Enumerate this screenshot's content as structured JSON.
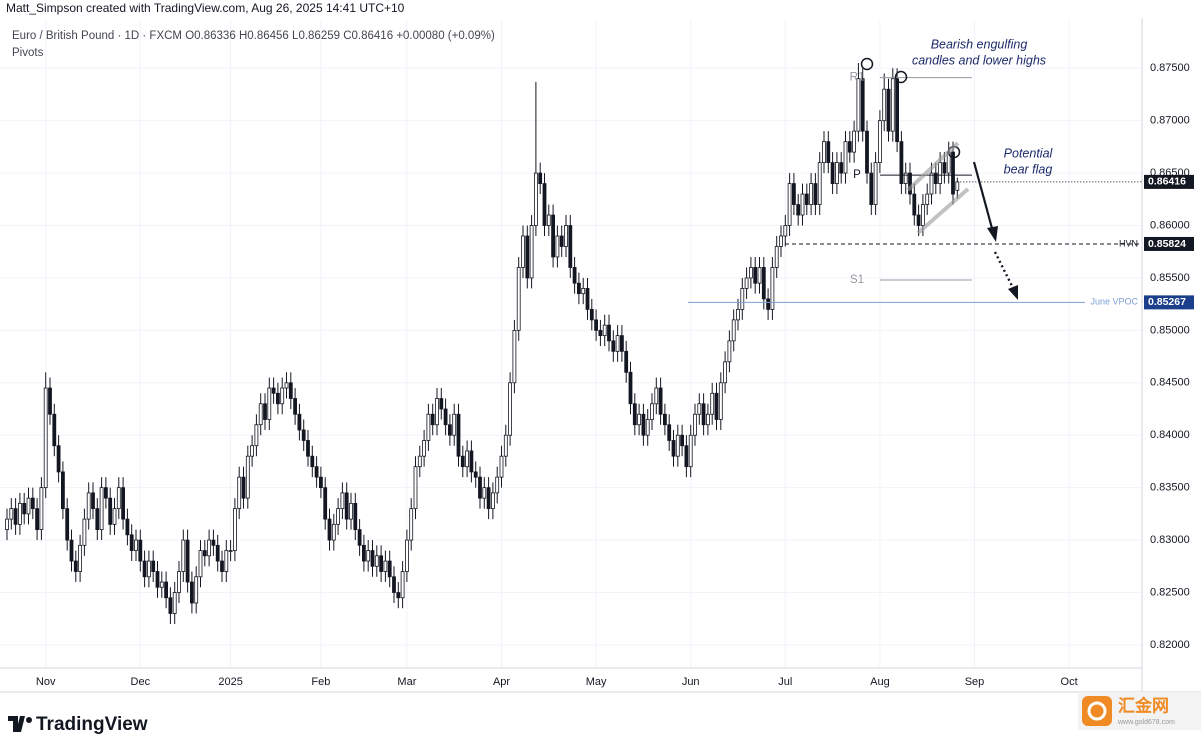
{
  "header": {
    "credit": "Matt_Simpson created with TradingView.com, Aug 26, 2025 14:41 UTC+10"
  },
  "legend": {
    "symbol": "Euro / British Pound · 1D · FXCM",
    "letters": [
      "O",
      "H",
      "L",
      "C"
    ],
    "change": "+0.00080 (+0.09%)",
    "indicator": "Pivots"
  },
  "brand": "TradingView",
  "watermark": {
    "name": "汇金网",
    "site": "www.gold678.com"
  },
  "chart_data": {
    "type": "candlestick",
    "categories": [
      null,
      null,
      null,
      null,
      null,
      null,
      null,
      null,
      null,
      "Nov",
      null,
      null,
      null,
      null,
      null,
      null,
      null,
      null,
      null,
      null,
      null,
      null,
      null,
      null,
      null,
      null,
      null,
      null,
      null,
      null,
      null,
      "Dec",
      null,
      null,
      null,
      null,
      null,
      null,
      null,
      null,
      null,
      null,
      null,
      null,
      null,
      null,
      null,
      null,
      null,
      null,
      null,
      null,
      "2025",
      null,
      null,
      null,
      null,
      null,
      null,
      null,
      null,
      null,
      null,
      null,
      null,
      null,
      null,
      null,
      null,
      null,
      null,
      null,
      null,
      "Feb",
      null,
      null,
      null,
      null,
      null,
      null,
      null,
      null,
      null,
      null,
      null,
      null,
      null,
      null,
      null,
      null,
      null,
      null,
      null,
      "Mar",
      null,
      null,
      null,
      null,
      null,
      null,
      null,
      null,
      null,
      null,
      null,
      null,
      null,
      null,
      null,
      null,
      null,
      null,
      null,
      null,
      null,
      "Apr",
      null,
      null,
      null,
      null,
      null,
      null,
      null,
      null,
      null,
      null,
      null,
      null,
      null,
      null,
      null,
      null,
      null,
      null,
      null,
      null,
      null,
      "May",
      null,
      null,
      null,
      null,
      null,
      null,
      null,
      null,
      null,
      null,
      null,
      null,
      null,
      null,
      null,
      null,
      null,
      null,
      null,
      null,
      null,
      "Jun",
      null,
      null,
      null,
      null,
      null,
      null,
      null,
      null,
      null,
      null,
      null,
      null,
      null,
      null,
      null,
      null,
      null,
      null,
      null,
      null,
      null,
      "Jul",
      null,
      null,
      null,
      null,
      null,
      null,
      null,
      null,
      null,
      null,
      null,
      null,
      null,
      null,
      null,
      null,
      null,
      null,
      null,
      null,
      null,
      "Aug",
      null,
      null,
      null,
      null,
      null,
      null,
      null,
      null,
      null,
      null,
      null,
      null,
      null,
      null,
      null,
      null,
      null,
      null,
      null,
      null,
      null,
      "Sep",
      null,
      null,
      null,
      null,
      null,
      null,
      null,
      null,
      null,
      null,
      null,
      null,
      null,
      null,
      null,
      null,
      null,
      null,
      null,
      null,
      null,
      "Oct",
      null,
      null
    ],
    "open": [
      0.831,
      0.832,
      0.833,
      0.8315,
      0.8335,
      0.8325,
      0.834,
      0.833,
      0.831,
      0.835,
      0.8445,
      0.842,
      0.839,
      0.8365,
      0.833,
      0.83,
      0.828,
      0.827,
      0.8295,
      0.832,
      0.8345,
      0.833,
      0.831,
      0.835,
      0.834,
      0.8315,
      0.833,
      0.835,
      0.832,
      0.8305,
      0.829,
      0.83,
      0.828,
      0.8265,
      0.828,
      0.827,
      0.8255,
      0.826,
      0.8245,
      0.823,
      0.825,
      0.827,
      0.83,
      0.826,
      0.824,
      0.8265,
      0.829,
      0.8285,
      0.83,
      0.8295,
      0.828,
      0.827,
      0.829,
      0.829,
      0.833,
      0.836,
      0.834,
      0.838,
      0.839,
      0.841,
      0.843,
      0.8415,
      0.8445,
      0.844,
      0.843,
      0.8445,
      0.845,
      0.8435,
      0.842,
      0.8405,
      0.8395,
      0.838,
      0.837,
      0.836,
      0.835,
      0.832,
      0.83,
      0.8315,
      0.833,
      0.8345,
      0.832,
      0.8335,
      0.831,
      0.8295,
      0.828,
      0.829,
      0.8275,
      0.8285,
      0.827,
      0.828,
      0.8265,
      0.825,
      0.8245,
      0.827,
      0.83,
      0.833,
      0.837,
      0.838,
      0.8395,
      0.842,
      0.841,
      0.8435,
      0.8425,
      0.841,
      0.84,
      0.842,
      0.838,
      0.837,
      0.8385,
      0.8365,
      0.836,
      0.834,
      0.835,
      0.833,
      0.8345,
      0.836,
      0.838,
      0.84,
      0.845,
      0.85,
      0.856,
      0.859,
      0.855,
      0.86,
      0.865,
      0.864,
      0.86,
      0.861,
      0.857,
      0.859,
      0.858,
      0.86,
      0.856,
      0.8545,
      0.8535,
      0.854,
      0.852,
      0.851,
      0.85,
      0.8495,
      0.8505,
      0.849,
      0.848,
      0.8495,
      0.848,
      0.846,
      0.843,
      0.841,
      0.842,
      0.84,
      0.8415,
      0.843,
      0.8445,
      0.842,
      0.841,
      0.8395,
      0.838,
      0.84,
      0.839,
      0.837,
      0.84,
      0.842,
      0.843,
      0.841,
      0.842,
      0.844,
      0.8415,
      0.845,
      0.847,
      0.849,
      0.851,
      0.852,
      0.854,
      0.855,
      0.856,
      0.8545,
      0.856,
      0.853,
      0.852,
      0.856,
      0.858,
      0.859,
      0.86,
      0.864,
      0.862,
      0.861,
      0.863,
      0.862,
      0.864,
      0.862,
      0.866,
      0.868,
      0.866,
      0.864,
      0.866,
      0.865,
      0.868,
      0.867,
      0.869,
      0.874,
      0.869,
      0.865,
      0.862,
      0.866,
      0.87,
      0.873,
      0.869,
      0.874,
      0.868,
      0.864,
      0.865,
      0.863,
      0.861,
      0.86,
      0.862,
      0.863,
      0.865,
      0.864,
      0.866,
      0.865,
      0.867,
      0.86336,
      null,
      null,
      null,
      null,
      null,
      null,
      null,
      null,
      null,
      null,
      null,
      null,
      null,
      null,
      null,
      null,
      null,
      null,
      null,
      null,
      null,
      null,
      null,
      null,
      null,
      null,
      null,
      null
    ],
    "high": [
      0.833,
      0.834,
      0.834,
      0.8345,
      0.8345,
      0.835,
      0.835,
      0.834,
      0.836,
      0.846,
      0.8455,
      0.843,
      0.84,
      0.8375,
      0.834,
      0.831,
      0.829,
      0.8305,
      0.833,
      0.8355,
      0.8355,
      0.834,
      0.836,
      0.836,
      0.835,
      0.834,
      0.836,
      0.836,
      0.833,
      0.8315,
      0.831,
      0.831,
      0.829,
      0.829,
      0.829,
      0.828,
      0.827,
      0.827,
      0.8255,
      0.826,
      0.828,
      0.831,
      0.831,
      0.827,
      0.8275,
      0.83,
      0.83,
      0.831,
      0.831,
      0.8305,
      0.829,
      0.83,
      0.83,
      0.834,
      0.837,
      0.837,
      0.839,
      0.84,
      0.842,
      0.844,
      0.844,
      0.8455,
      0.8455,
      0.845,
      0.8455,
      0.846,
      0.846,
      0.8445,
      0.843,
      0.8415,
      0.8405,
      0.839,
      0.838,
      0.837,
      0.836,
      0.833,
      0.8325,
      0.834,
      0.8355,
      0.8355,
      0.8345,
      0.8345,
      0.832,
      0.8305,
      0.83,
      0.83,
      0.8295,
      0.8295,
      0.829,
      0.829,
      0.8275,
      0.826,
      0.828,
      0.831,
      0.834,
      0.838,
      0.839,
      0.8405,
      0.843,
      0.843,
      0.8445,
      0.8445,
      0.8435,
      0.842,
      0.843,
      0.843,
      0.839,
      0.8395,
      0.8395,
      0.8375,
      0.837,
      0.836,
      0.836,
      0.8355,
      0.837,
      0.839,
      0.841,
      0.846,
      0.851,
      0.857,
      0.86,
      0.86,
      0.861,
      0.8737,
      0.866,
      0.865,
      0.862,
      0.862,
      0.86,
      0.86,
      0.861,
      0.861,
      0.857,
      0.8555,
      0.855,
      0.855,
      0.853,
      0.852,
      0.851,
      0.8515,
      0.8515,
      0.85,
      0.8505,
      0.8505,
      0.849,
      0.847,
      0.844,
      0.843,
      0.843,
      0.8425,
      0.844,
      0.8455,
      0.8455,
      0.843,
      0.842,
      0.8405,
      0.841,
      0.841,
      0.84,
      0.841,
      0.843,
      0.844,
      0.844,
      0.843,
      0.845,
      0.845,
      0.846,
      0.848,
      0.85,
      0.852,
      0.853,
      0.855,
      0.856,
      0.857,
      0.857,
      0.857,
      0.857,
      0.854,
      0.857,
      0.859,
      0.86,
      0.861,
      0.865,
      0.865,
      0.863,
      0.864,
      0.864,
      0.865,
      0.865,
      0.867,
      0.869,
      0.869,
      0.867,
      0.867,
      0.867,
      0.869,
      0.869,
      0.87,
      0.8755,
      0.875,
      0.87,
      0.866,
      0.867,
      0.871,
      0.8745,
      0.874,
      0.875,
      0.875,
      0.869,
      0.866,
      0.866,
      0.864,
      0.862,
      0.863,
      0.864,
      0.866,
      0.866,
      0.867,
      0.867,
      0.868,
      0.868,
      0.86456,
      null,
      null,
      null,
      null,
      null,
      null,
      null,
      null,
      null,
      null,
      null,
      null,
      null,
      null,
      null,
      null,
      null,
      null,
      null,
      null,
      null,
      null,
      null,
      null,
      null,
      null,
      null,
      null
    ],
    "low": [
      0.83,
      0.831,
      0.8305,
      0.8305,
      0.8315,
      0.8315,
      0.832,
      0.83,
      0.83,
      0.834,
      0.841,
      0.838,
      0.8355,
      0.832,
      0.829,
      0.827,
      0.826,
      0.826,
      0.8285,
      0.831,
      0.832,
      0.83,
      0.83,
      0.833,
      0.8305,
      0.8305,
      0.832,
      0.831,
      0.8295,
      0.828,
      0.828,
      0.827,
      0.8255,
      0.8255,
      0.826,
      0.8245,
      0.8245,
      0.8235,
      0.822,
      0.822,
      0.824,
      0.826,
      0.825,
      0.823,
      0.823,
      0.8255,
      0.8275,
      0.8275,
      0.8285,
      0.827,
      0.826,
      0.826,
      0.828,
      0.828,
      0.832,
      0.833,
      0.833,
      0.837,
      0.838,
      0.84,
      0.8405,
      0.8405,
      0.843,
      0.842,
      0.842,
      0.8435,
      0.8425,
      0.841,
      0.8395,
      0.8385,
      0.837,
      0.836,
      0.835,
      0.834,
      0.831,
      0.829,
      0.829,
      0.8305,
      0.832,
      0.831,
      0.831,
      0.83,
      0.8285,
      0.827,
      0.827,
      0.8265,
      0.8265,
      0.826,
      0.826,
      0.8255,
      0.824,
      0.8235,
      0.8235,
      0.826,
      0.829,
      0.832,
      0.836,
      0.837,
      0.8385,
      0.84,
      0.84,
      0.8415,
      0.84,
      0.839,
      0.839,
      0.837,
      0.836,
      0.836,
      0.8355,
      0.835,
      0.833,
      0.833,
      0.832,
      0.832,
      0.8335,
      0.835,
      0.837,
      0.839,
      0.844,
      0.849,
      0.855,
      0.854,
      0.854,
      0.859,
      0.863,
      0.859,
      0.859,
      0.856,
      0.856,
      0.857,
      0.857,
      0.855,
      0.8535,
      0.8525,
      0.8525,
      0.851,
      0.85,
      0.849,
      0.8485,
      0.8485,
      0.848,
      0.847,
      0.847,
      0.847,
      0.845,
      0.842,
      0.84,
      0.84,
      0.839,
      0.839,
      0.8405,
      0.842,
      0.841,
      0.84,
      0.8385,
      0.837,
      0.837,
      0.838,
      0.836,
      0.836,
      0.839,
      0.841,
      0.84,
      0.84,
      0.841,
      0.8405,
      0.8405,
      0.844,
      0.846,
      0.848,
      0.85,
      0.851,
      0.853,
      0.854,
      0.8535,
      0.8535,
      0.852,
      0.851,
      0.851,
      0.855,
      0.857,
      0.858,
      0.859,
      0.861,
      0.86,
      0.86,
      0.861,
      0.861,
      0.861,
      0.861,
      0.865,
      0.865,
      0.863,
      0.863,
      0.864,
      0.864,
      0.866,
      0.866,
      0.868,
      0.868,
      0.864,
      0.861,
      0.861,
      0.865,
      0.869,
      0.868,
      0.868,
      0.867,
      0.863,
      0.863,
      0.862,
      0.86,
      0.859,
      0.859,
      0.861,
      0.862,
      0.863,
      0.863,
      0.864,
      0.864,
      0.862,
      0.86259,
      null,
      null,
      null,
      null,
      null,
      null,
      null,
      null,
      null,
      null,
      null,
      null,
      null,
      null,
      null,
      null,
      null,
      null,
      null,
      null,
      null,
      null,
      null,
      null,
      null,
      null,
      null,
      null
    ],
    "close": [
      0.832,
      0.833,
      0.8315,
      0.8335,
      0.8325,
      0.834,
      0.833,
      0.831,
      0.835,
      0.8445,
      0.842,
      0.839,
      0.8365,
      0.833,
      0.83,
      0.828,
      0.827,
      0.8295,
      0.832,
      0.8345,
      0.833,
      0.831,
      0.835,
      0.834,
      0.8315,
      0.833,
      0.835,
      0.832,
      0.8305,
      0.829,
      0.83,
      0.828,
      0.8265,
      0.828,
      0.827,
      0.8255,
      0.826,
      0.8245,
      0.823,
      0.825,
      0.827,
      0.83,
      0.826,
      0.824,
      0.8265,
      0.829,
      0.8285,
      0.83,
      0.8295,
      0.828,
      0.827,
      0.829,
      0.829,
      0.833,
      0.836,
      0.834,
      0.838,
      0.839,
      0.841,
      0.843,
      0.8415,
      0.8445,
      0.844,
      0.843,
      0.8445,
      0.845,
      0.8435,
      0.842,
      0.8405,
      0.8395,
      0.838,
      0.837,
      0.836,
      0.835,
      0.832,
      0.83,
      0.8315,
      0.833,
      0.8345,
      0.832,
      0.8335,
      0.831,
      0.8295,
      0.828,
      0.829,
      0.8275,
      0.8285,
      0.827,
      0.828,
      0.8265,
      0.825,
      0.8245,
      0.827,
      0.83,
      0.833,
      0.837,
      0.838,
      0.8395,
      0.842,
      0.841,
      0.8435,
      0.8425,
      0.841,
      0.84,
      0.842,
      0.838,
      0.837,
      0.8385,
      0.8365,
      0.836,
      0.834,
      0.835,
      0.833,
      0.8345,
      0.836,
      0.838,
      0.84,
      0.845,
      0.85,
      0.856,
      0.859,
      0.855,
      0.86,
      0.865,
      0.864,
      0.86,
      0.861,
      0.857,
      0.859,
      0.858,
      0.86,
      0.856,
      0.8545,
      0.8535,
      0.854,
      0.852,
      0.851,
      0.85,
      0.8495,
      0.8505,
      0.849,
      0.848,
      0.8495,
      0.848,
      0.846,
      0.843,
      0.841,
      0.842,
      0.84,
      0.8415,
      0.843,
      0.8445,
      0.842,
      0.841,
      0.8395,
      0.838,
      0.84,
      0.839,
      0.837,
      0.84,
      0.842,
      0.843,
      0.841,
      0.842,
      0.844,
      0.8415,
      0.845,
      0.847,
      0.849,
      0.851,
      0.852,
      0.854,
      0.855,
      0.856,
      0.8545,
      0.856,
      0.853,
      0.852,
      0.856,
      0.858,
      0.859,
      0.86,
      0.864,
      0.862,
      0.861,
      0.863,
      0.862,
      0.864,
      0.862,
      0.866,
      0.868,
      0.866,
      0.864,
      0.866,
      0.865,
      0.868,
      0.867,
      0.869,
      0.874,
      0.869,
      0.865,
      0.862,
      0.866,
      0.87,
      0.873,
      0.869,
      0.874,
      0.868,
      0.864,
      0.865,
      0.863,
      0.861,
      0.86,
      0.862,
      0.863,
      0.865,
      0.864,
      0.866,
      0.865,
      0.867,
      0.863,
      0.86416,
      null,
      null,
      null,
      null,
      null,
      null,
      null,
      null,
      null,
      null,
      null,
      null,
      null,
      null,
      null,
      null,
      null,
      null,
      null,
      null,
      null,
      null,
      null,
      null,
      null,
      null,
      null,
      null
    ],
    "up_color": "#ffffff",
    "down_color": "#131722",
    "outline_color": "#131722",
    "ylim": [
      0.8178,
      0.8796
    ],
    "yticks": [
      {
        "value": 0.82,
        "label": "0.82000"
      },
      {
        "value": 0.825,
        "label": "0.82500"
      },
      {
        "value": 0.83,
        "label": "0.83000"
      },
      {
        "value": 0.835,
        "label": "0.83500"
      },
      {
        "value": 0.84,
        "label": "0.84000"
      },
      {
        "value": 0.845,
        "label": "0.84500"
      },
      {
        "value": 0.85,
        "label": "0.85000"
      },
      {
        "value": 0.855,
        "label": "0.85500"
      },
      {
        "value": 0.86,
        "label": "0.86000"
      },
      {
        "value": 0.865,
        "label": "0.86500"
      },
      {
        "value": 0.87,
        "label": "0.87000"
      },
      {
        "value": 0.875,
        "label": "0.87500"
      }
    ],
    "grid": true,
    "pivots": [
      {
        "name": "R1",
        "value": 0.8741
      },
      {
        "name": "P",
        "value": 0.8648
      },
      {
        "name": "S1",
        "value": 0.8548
      }
    ],
    "levels": [
      {
        "name": "HVN",
        "value": 0.85824,
        "color": "#131722"
      },
      {
        "name": "June VPOC",
        "value": 0.85267,
        "color": "#1c3f8c"
      }
    ],
    "annotations": {
      "engulfing": [
        "Bearish engulfing",
        "candles and lower highs"
      ],
      "flag": [
        "Potential",
        "bear flag"
      ]
    }
  }
}
